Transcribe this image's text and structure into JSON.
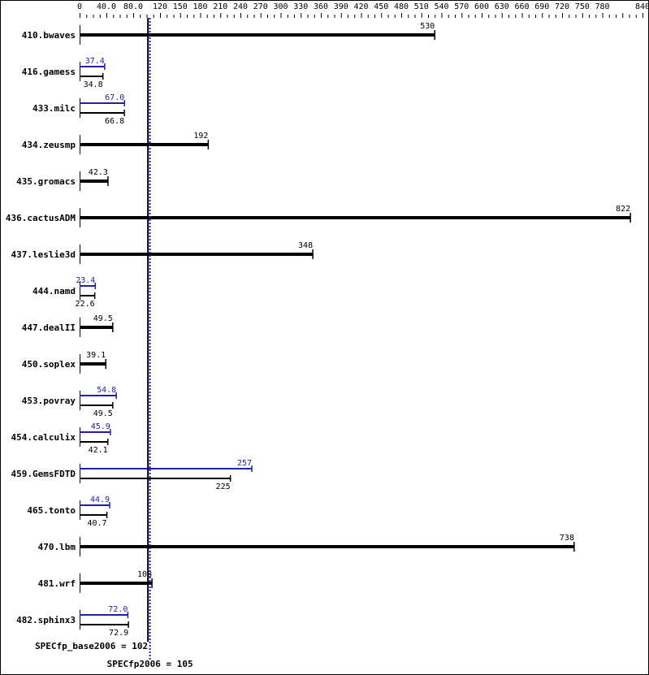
{
  "chart_data": {
    "type": "bar",
    "orientation": "horizontal",
    "xlim": [
      0,
      840
    ],
    "tick_labels": [
      "0",
      "40.0",
      "80.0",
      "120",
      "150",
      "180",
      "210",
      "240",
      "270",
      "300",
      "330",
      "360",
      "390",
      "420",
      "450",
      "480",
      "510",
      "540",
      "570",
      "600",
      "630",
      "660",
      "690",
      "720",
      "750",
      "780",
      "840"
    ],
    "tick_values": [
      0,
      40,
      80,
      120,
      150,
      180,
      210,
      240,
      270,
      300,
      330,
      360,
      390,
      420,
      450,
      480,
      510,
      540,
      570,
      600,
      630,
      660,
      690,
      720,
      750,
      780,
      840
    ],
    "colors": {
      "base": "#000000",
      "peak": "#1f1fa8"
    },
    "benchmarks": [
      {
        "name": "410.bwaves",
        "base": 530,
        "base_label": "530"
      },
      {
        "name": "416.gamess",
        "base": 34.8,
        "base_label": "34.8",
        "peak": 37.4,
        "peak_label": "37.4"
      },
      {
        "name": "433.milc",
        "base": 66.8,
        "base_label": "66.8",
        "peak": 67.0,
        "peak_label": "67.0"
      },
      {
        "name": "434.zeusmp",
        "base": 192,
        "base_label": "192"
      },
      {
        "name": "435.gromacs",
        "base": 42.3,
        "base_label": "42.3"
      },
      {
        "name": "436.cactusADM",
        "base": 822,
        "base_label": "822"
      },
      {
        "name": "437.leslie3d",
        "base": 348,
        "base_label": "348"
      },
      {
        "name": "444.namd",
        "base": 22.6,
        "base_label": "22.6",
        "peak": 23.4,
        "peak_label": "23.4"
      },
      {
        "name": "447.dealII",
        "base": 49.5,
        "base_label": "49.5"
      },
      {
        "name": "450.soplex",
        "base": 39.1,
        "base_label": "39.1"
      },
      {
        "name": "453.povray",
        "base": 49.5,
        "base_label": "49.5",
        "peak": 54.8,
        "peak_label": "54.8"
      },
      {
        "name": "454.calculix",
        "base": 42.1,
        "base_label": "42.1",
        "peak": 45.9,
        "peak_label": "45.9"
      },
      {
        "name": "459.GemsFDTD",
        "base": 225,
        "base_label": "225",
        "peak": 257,
        "peak_label": "257"
      },
      {
        "name": "465.tonto",
        "base": 40.7,
        "base_label": "40.7",
        "peak": 44.9,
        "peak_label": "44.9"
      },
      {
        "name": "470.lbm",
        "base": 738,
        "base_label": "738"
      },
      {
        "name": "481.wrf",
        "base": 108,
        "base_label": "108"
      },
      {
        "name": "482.sphinx3",
        "base": 72.9,
        "base_label": "72.9",
        "peak": 72.0,
        "peak_label": "72.0"
      }
    ],
    "base_mean": {
      "value": 102,
      "label": "SPECfp_base2006 = 102"
    },
    "peak_mean": {
      "value": 105,
      "label": "SPECfp2006 = 105"
    }
  }
}
